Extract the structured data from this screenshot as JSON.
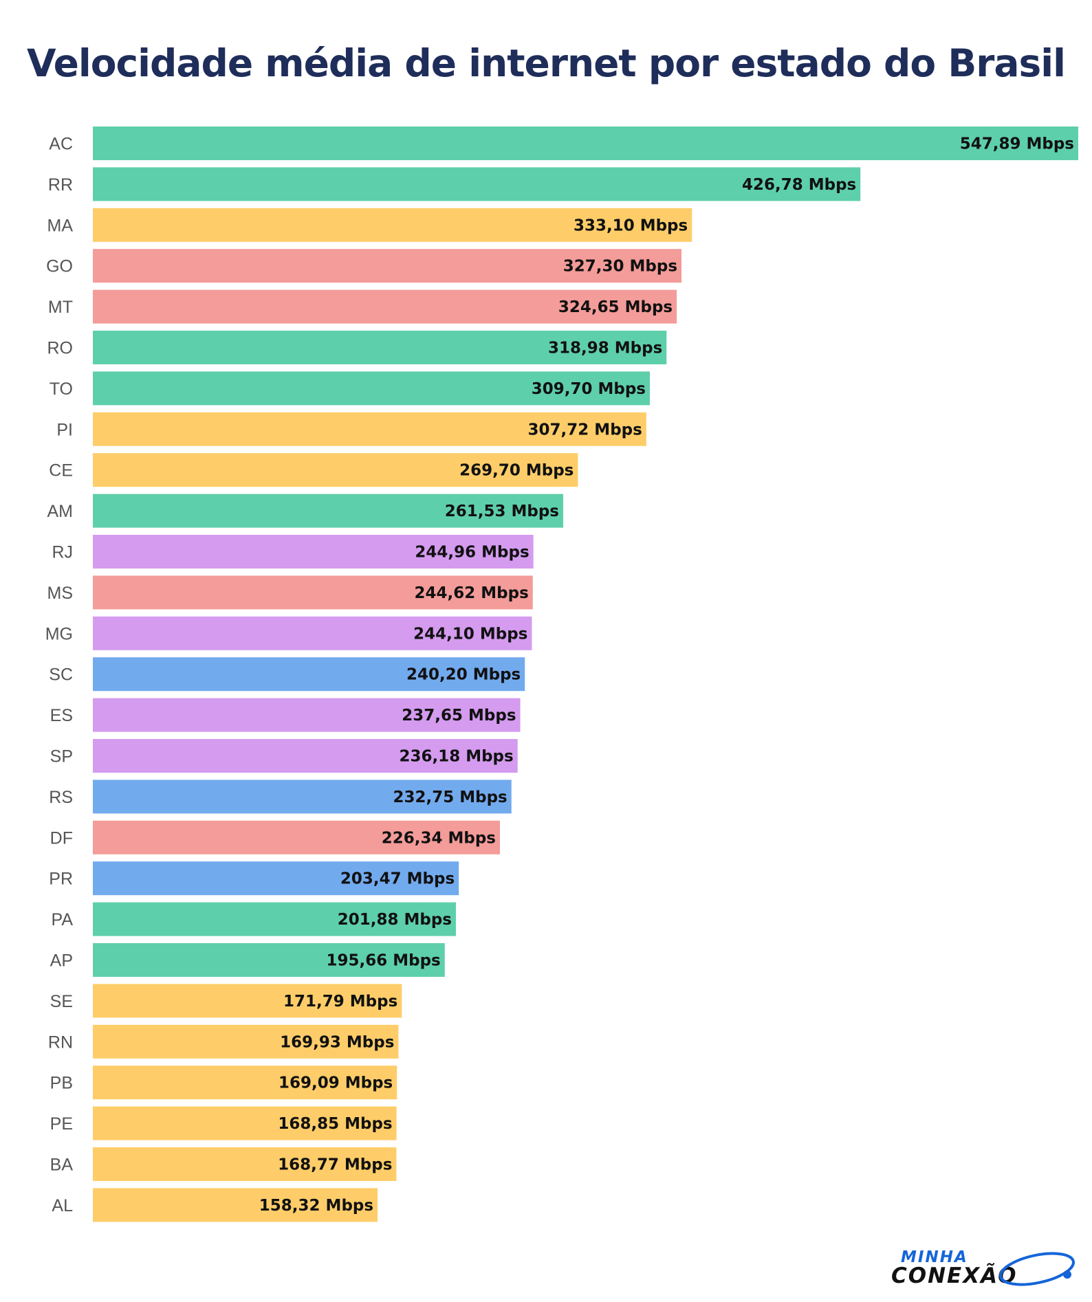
{
  "chart_data": {
    "type": "bar",
    "orientation": "horizontal",
    "title": "Velocidade média de internet por estado do Brasil",
    "xlim": [
      0,
      547.89
    ],
    "grid": false,
    "categories": [
      "AC",
      "RR",
      "MA",
      "GO",
      "MT",
      "RO",
      "TO",
      "PI",
      "CE",
      "AM",
      "RJ",
      "MS",
      "MG",
      "SC",
      "ES",
      "SP",
      "RS",
      "DF",
      "PR",
      "PA",
      "AP",
      "SE",
      "RN",
      "PB",
      "PE",
      "BA",
      "AL"
    ],
    "values": [
      547.89,
      426.78,
      333.1,
      327.3,
      324.65,
      318.98,
      309.7,
      307.72,
      269.7,
      261.53,
      244.96,
      244.62,
      244.1,
      240.2,
      237.65,
      236.18,
      232.75,
      226.34,
      203.47,
      201.88,
      195.66,
      171.79,
      169.93,
      169.09,
      168.85,
      168.77,
      158.32
    ],
    "value_labels": [
      "547,89 Mbps",
      "426,78 Mbps",
      "333,10 Mbps",
      "327,30 Mbps",
      "324,65 Mbps",
      "318,98 Mbps",
      "309,70 Mbps",
      "307,72 Mbps",
      "269,70 Mbps",
      "261,53 Mbps",
      "244,96 Mbps",
      "244,62 Mbps",
      "244,10 Mbps",
      "240,20 Mbps",
      "237,65 Mbps",
      "236,18 Mbps",
      "232,75 Mbps",
      "226,34 Mbps",
      "203,47 Mbps",
      "201,88 Mbps",
      "195,66 Mbps",
      "171,79 Mbps",
      "169,93 Mbps",
      "169,09 Mbps",
      "168,85 Mbps",
      "168,77 Mbps",
      "158,32 Mbps"
    ],
    "bar_colors": [
      "#5ecfab",
      "#5ecfab",
      "#fecd69",
      "#f39c99",
      "#f39c99",
      "#5ecfab",
      "#5ecfab",
      "#fecd69",
      "#fecd69",
      "#5ecfab",
      "#d49bef",
      "#f39c99",
      "#d49bef",
      "#72aaee",
      "#d49bef",
      "#d49bef",
      "#72aaee",
      "#f39c99",
      "#72aaee",
      "#5ecfab",
      "#5ecfab",
      "#fecd69",
      "#fecd69",
      "#fecd69",
      "#fecd69",
      "#fecd69",
      "#fecd69"
    ]
  },
  "logo": {
    "line1": "MINHA",
    "line2": "CONEXÃO"
  }
}
